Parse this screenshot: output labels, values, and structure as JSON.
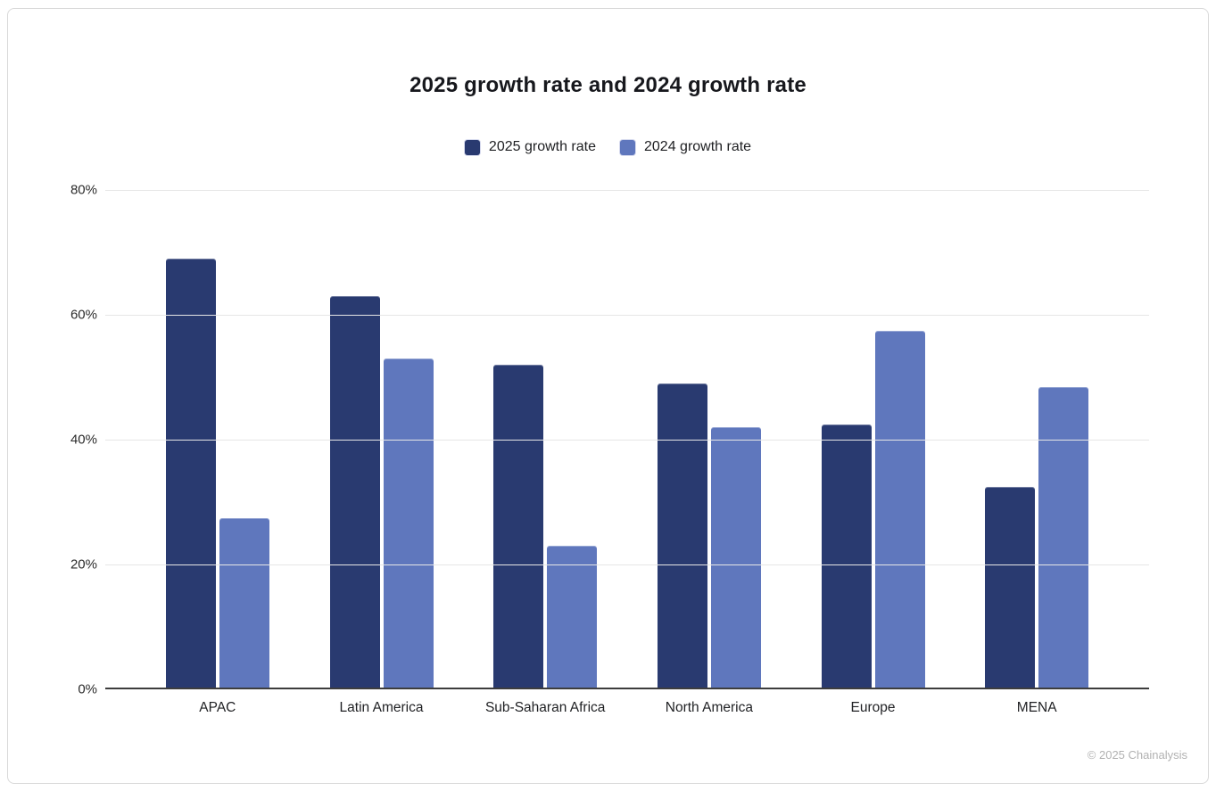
{
  "chart_data": {
    "type": "bar",
    "title": "2025 growth rate and 2024 growth rate",
    "categories": [
      "APAC",
      "Latin America",
      "Sub-Saharan Africa",
      "North America",
      "Europe",
      "MENA"
    ],
    "series": [
      {
        "name": "2025 growth rate",
        "color": "#293a70",
        "values": [
          69,
          63,
          52,
          49,
          42.5,
          32.5
        ]
      },
      {
        "name": "2024 growth rate",
        "color": "#5f77bd",
        "values": [
          27.5,
          53,
          23,
          42,
          57.5,
          48.5
        ]
      }
    ],
    "ylabel": "",
    "xlabel": "",
    "ylim": [
      0,
      80
    ],
    "ytick_values": [
      80,
      60,
      40,
      20,
      0
    ],
    "ytick_labels": [
      "80%",
      "60%",
      "40%",
      "20%",
      "0%"
    ],
    "grid": true,
    "legend_position": "top"
  },
  "footer": {
    "copyright": "© 2025 Chainalysis"
  },
  "colors": {
    "series_2025": "#293a70",
    "series_2024": "#5f77bd",
    "gridline": "#e6e6e6",
    "axis": "#3d3d3d",
    "card_border": "#d9d9d9",
    "footer_text": "#b2b2b2"
  }
}
